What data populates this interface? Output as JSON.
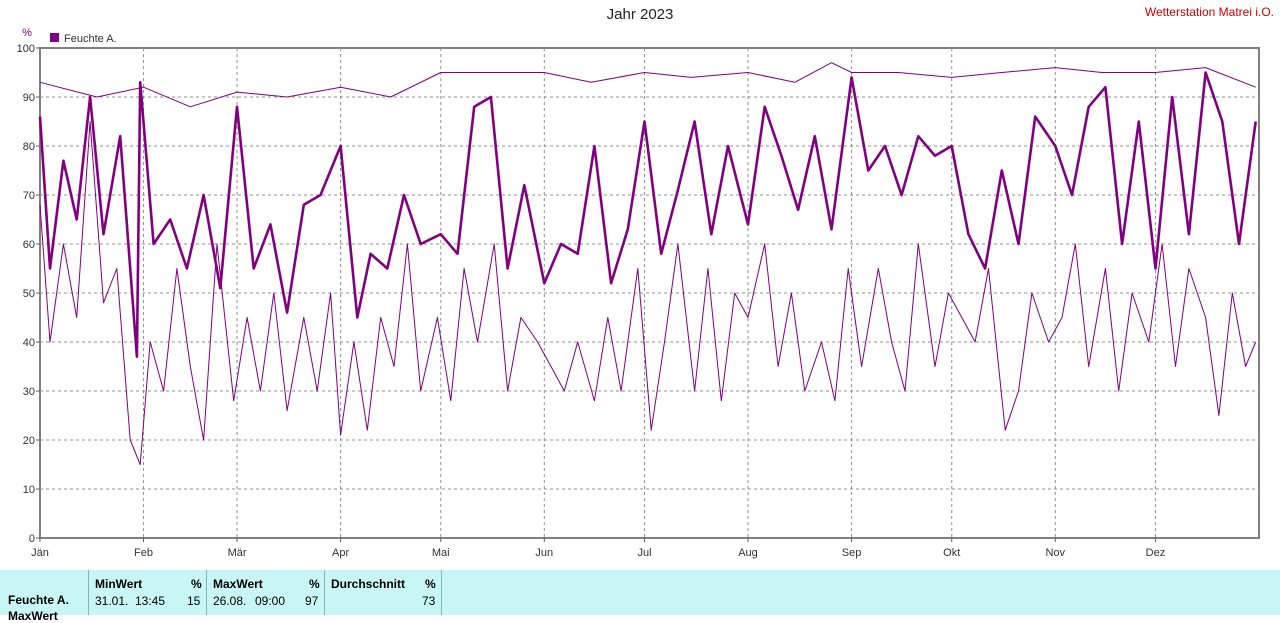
{
  "page_title": "Jahr 2023",
  "station_name": "Wetterstation Matrei i.O.",
  "y_unit": "%",
  "chart_data": {
    "type": "line",
    "title": "Jahr 2023",
    "xlabel": "",
    "ylabel": "%",
    "ylim": [
      0,
      100
    ],
    "y_ticks": [
      "0",
      "10",
      "20",
      "30",
      "40",
      "50",
      "60",
      "70",
      "80",
      "90",
      "100"
    ],
    "x_ticks": [
      "Jän",
      "Feb",
      "Mär",
      "Apr",
      "Mai",
      "Jun",
      "Jul",
      "Aug",
      "Sep",
      "Okt",
      "Nov",
      "Dez"
    ],
    "grid": true,
    "legend": {
      "position": "top-left",
      "entries": [
        {
          "name": "Feuchte A.",
          "color": "#800080"
        }
      ]
    },
    "series": [
      {
        "name": "Feuchte A.",
        "role": "daily_max",
        "x_unit": "day_of_year",
        "x": [
          1,
          18,
          32,
          46,
          60,
          75,
          91,
          106,
          121,
          135,
          152,
          166,
          182,
          196,
          213,
          227,
          238,
          244,
          258,
          274,
          289,
          305,
          319,
          335,
          350,
          365
        ],
        "values": [
          93,
          90,
          92,
          88,
          91,
          90,
          92,
          90,
          95,
          95,
          95,
          93,
          95,
          94,
          95,
          93,
          97,
          95,
          95,
          94,
          95,
          96,
          95,
          95,
          96,
          92
        ]
      },
      {
        "name": "Feuchte A.",
        "role": "daily_mean",
        "x_unit": "day_of_year",
        "x": [
          1,
          4,
          8,
          12,
          16,
          20,
          25,
          30,
          31,
          35,
          40,
          45,
          50,
          55,
          60,
          65,
          70,
          75,
          80,
          85,
          91,
          96,
          100,
          105,
          110,
          115,
          121,
          126,
          131,
          136,
          141,
          146,
          152,
          157,
          162,
          167,
          172,
          177,
          182,
          187,
          192,
          197,
          202,
          207,
          213,
          218,
          223,
          228,
          233,
          238,
          244,
          249,
          254,
          259,
          264,
          269,
          274,
          279,
          284,
          289,
          294,
          299,
          305,
          310,
          315,
          320,
          325,
          330,
          335,
          340,
          345,
          350,
          355,
          360,
          365
        ],
        "values": [
          86,
          55,
          77,
          65,
          90,
          62,
          82,
          37,
          93,
          60,
          65,
          55,
          70,
          51,
          88,
          55,
          64,
          46,
          68,
          70,
          80,
          45,
          58,
          55,
          70,
          60,
          62,
          58,
          88,
          90,
          55,
          72,
          52,
          60,
          58,
          80,
          52,
          63,
          85,
          58,
          71,
          85,
          62,
          80,
          64,
          88,
          78,
          67,
          82,
          63,
          94,
          75,
          80,
          70,
          82,
          78,
          80,
          62,
          55,
          75,
          60,
          86,
          80,
          70,
          88,
          92,
          60,
          85,
          55,
          90,
          62,
          95,
          85,
          60,
          85
        ]
      },
      {
        "name": "Feuchte A.",
        "role": "daily_min",
        "x_unit": "day_of_year",
        "x": [
          1,
          4,
          8,
          12,
          16,
          20,
          24,
          28,
          31,
          34,
          38,
          42,
          46,
          50,
          54,
          59,
          63,
          67,
          71,
          75,
          80,
          84,
          88,
          91,
          95,
          99,
          103,
          107,
          111,
          115,
          120,
          124,
          128,
          132,
          137,
          141,
          145,
          150,
          154,
          158,
          162,
          167,
          171,
          175,
          180,
          184,
          188,
          192,
          197,
          201,
          205,
          209,
          213,
          218,
          222,
          226,
          230,
          235,
          239,
          243,
          247,
          252,
          256,
          260,
          264,
          269,
          273,
          277,
          281,
          285,
          290,
          294,
          298,
          303,
          307,
          311,
          315,
          320,
          324,
          328,
          333,
          337,
          341,
          345,
          350,
          354,
          358,
          362,
          365
        ],
        "values": [
          68,
          40,
          60,
          45,
          85,
          48,
          55,
          20,
          15,
          40,
          30,
          55,
          35,
          20,
          60,
          28,
          45,
          30,
          50,
          26,
          45,
          30,
          50,
          21,
          40,
          22,
          45,
          35,
          60,
          30,
          45,
          28,
          55,
          40,
          60,
          30,
          45,
          40,
          35,
          30,
          40,
          28,
          45,
          30,
          55,
          22,
          40,
          60,
          30,
          55,
          28,
          50,
          45,
          60,
          35,
          50,
          30,
          40,
          28,
          55,
          35,
          55,
          40,
          30,
          60,
          35,
          50,
          45,
          40,
          55,
          22,
          30,
          50,
          40,
          45,
          60,
          35,
          55,
          30,
          50,
          40,
          60,
          35,
          55,
          45,
          25,
          50,
          35,
          40
        ]
      }
    ]
  },
  "stats_table": {
    "row_labels": [
      "Feuchte A.",
      "MaxWert"
    ],
    "columns": [
      {
        "header": "MinWert",
        "unit": "%",
        "date": "31.01.",
        "time": "13:45",
        "value": "15"
      },
      {
        "header": "MaxWert",
        "unit": "%",
        "date": "26.08.",
        "time": "09:00",
        "value": "97"
      },
      {
        "header": "Durchschnitt",
        "unit": "%",
        "date": "",
        "time": "",
        "value": "73"
      }
    ]
  }
}
